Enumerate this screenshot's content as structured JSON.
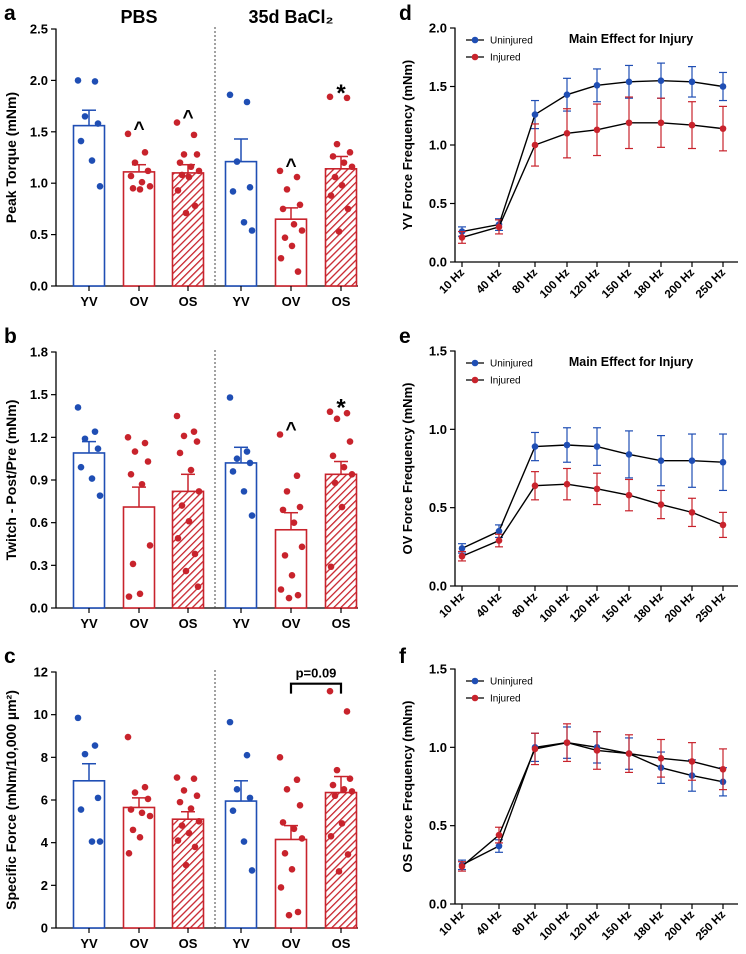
{
  "colors": {
    "blue": "#1f4eb4",
    "red": "#c8232c"
  },
  "chart_data": [
    {
      "panel": "a",
      "type": "bar",
      "group_labels": [
        "PBS",
        "35d BaCl₂"
      ],
      "categories": [
        "YV",
        "OV",
        "OS",
        "YV",
        "OV",
        "OS"
      ],
      "ylabel": "Peak Torque (mNm)",
      "ylim": [
        0,
        2.5
      ],
      "yticks": [
        "0.0",
        "0.5",
        "1.0",
        "1.5",
        "2.0",
        "2.5"
      ],
      "means": [
        1.56,
        1.11,
        1.1,
        1.21,
        0.65,
        1.14
      ],
      "sem": [
        0.15,
        0.07,
        0.08,
        0.22,
        0.11,
        0.12
      ],
      "points": [
        [
          2.0,
          1.99,
          1.65,
          1.58,
          1.41,
          1.22,
          0.97
        ],
        [
          1.48,
          1.3,
          1.2,
          1.12,
          1.07,
          1.01,
          0.97,
          0.95,
          0.94
        ],
        [
          1.59,
          1.47,
          1.28,
          1.28,
          1.2,
          1.16,
          1.12,
          1.08,
          1.06,
          0.93,
          0.78,
          0.71
        ],
        [
          1.86,
          1.79,
          1.21,
          0.96,
          0.92,
          0.62,
          0.54
        ],
        [
          1.12,
          1.06,
          0.94,
          0.79,
          0.75,
          0.6,
          0.54,
          0.47,
          0.39,
          0.27,
          0.14
        ],
        [
          1.84,
          1.83,
          1.38,
          1.3,
          1.26,
          1.2,
          1.16,
          1.06,
          0.98,
          0.88,
          0.75,
          0.53
        ]
      ],
      "markers": [
        "",
        "^",
        "^",
        "",
        "^",
        "*"
      ]
    },
    {
      "panel": "b",
      "type": "bar",
      "categories": [
        "YV",
        "OV",
        "OS",
        "YV",
        "OV",
        "OS"
      ],
      "ylabel": "Twitch - Post/Pre (mNm)",
      "ylim": [
        0,
        1.8
      ],
      "yticks": [
        "0.0",
        "0.3",
        "0.6",
        "0.9",
        "1.2",
        "1.5",
        "1.8"
      ],
      "means": [
        1.09,
        0.71,
        0.82,
        1.02,
        0.55,
        0.94
      ],
      "sem": [
        0.08,
        0.14,
        0.12,
        0.11,
        0.12,
        0.09
      ],
      "points": [
        [
          1.41,
          1.24,
          1.19,
          1.12,
          0.99,
          0.91,
          0.79
        ],
        [
          1.2,
          1.16,
          1.1,
          1.03,
          0.94,
          0.87,
          0.44,
          0.31,
          0.1,
          0.08
        ],
        [
          1.35,
          1.24,
          1.21,
          1.17,
          1.09,
          0.97,
          0.82,
          0.72,
          0.61,
          0.49,
          0.38,
          0.26,
          0.15
        ],
        [
          1.48,
          1.1,
          1.05,
          1.02,
          0.96,
          0.82,
          0.65
        ],
        [
          1.22,
          0.93,
          0.82,
          0.71,
          0.69,
          0.6,
          0.43,
          0.37,
          0.23,
          0.13,
          0.09,
          0.07
        ],
        [
          1.38,
          1.37,
          1.33,
          1.17,
          1.07,
          0.99,
          0.94,
          0.88,
          0.71,
          0.29
        ]
      ],
      "markers": [
        "",
        "",
        "",
        "",
        "^",
        "*"
      ]
    },
    {
      "panel": "c",
      "type": "bar",
      "categories": [
        "YV",
        "OV",
        "OS",
        "YV",
        "OV",
        "OS"
      ],
      "ylabel": "Specific Force (mNm/10,000 µm²)",
      "ylim": [
        0,
        12
      ],
      "yticks": [
        "0",
        "2",
        "4",
        "6",
        "8",
        "10",
        "12"
      ],
      "means": [
        6.9,
        5.65,
        5.1,
        5.95,
        4.15,
        6.35
      ],
      "sem": [
        0.8,
        0.45,
        0.35,
        0.95,
        0.65,
        0.75
      ],
      "points": [
        [
          9.85,
          8.55,
          8.15,
          6.1,
          5.55,
          4.05,
          4.05
        ],
        [
          8.95,
          6.6,
          6.35,
          6.05,
          5.55,
          5.4,
          5.25,
          4.6,
          4.25,
          3.5
        ],
        [
          7.05,
          7.0,
          6.45,
          6.2,
          5.9,
          5.6,
          5.0,
          4.8,
          4.45,
          4.1,
          3.8,
          2.95
        ],
        [
          9.65,
          8.1,
          6.5,
          6.1,
          5.5,
          4.05,
          2.7
        ],
        [
          8.0,
          6.95,
          6.5,
          5.75,
          4.95,
          4.65,
          4.2,
          3.5,
          2.75,
          1.9,
          0.75,
          0.6
        ],
        [
          11.1,
          10.15,
          7.4,
          7.0,
          6.7,
          6.5,
          6.4,
          6.2,
          4.9,
          4.3,
          3.45,
          2.65
        ]
      ],
      "annotation": "p=0.09"
    },
    {
      "panel": "d",
      "type": "line",
      "title": "Main Effect for Injury",
      "xcategories": [
        "10 Hz",
        "40 Hz",
        "80 Hz",
        "100 Hz",
        "120 Hz",
        "150 Hz",
        "180 Hz",
        "200 Hz",
        "250 Hz"
      ],
      "ylabel": "YV Force Frequency (mNm)",
      "ylim": [
        0,
        2.0
      ],
      "yticks": [
        "0.0",
        "0.5",
        "1.0",
        "1.5",
        "2.0"
      ],
      "series": [
        {
          "name": "Uninjured",
          "values": [
            0.26,
            0.32,
            1.26,
            1.43,
            1.51,
            1.54,
            1.55,
            1.54,
            1.5
          ],
          "errors": [
            0.04,
            0.05,
            0.12,
            0.14,
            0.14,
            0.14,
            0.15,
            0.13,
            0.12
          ]
        },
        {
          "name": "Injured",
          "values": [
            0.21,
            0.3,
            1.0,
            1.1,
            1.13,
            1.19,
            1.19,
            1.17,
            1.14
          ],
          "errors": [
            0.05,
            0.06,
            0.18,
            0.21,
            0.22,
            0.22,
            0.21,
            0.2,
            0.19
          ]
        }
      ]
    },
    {
      "panel": "e",
      "type": "line",
      "title": "Main Effect for Injury",
      "xcategories": [
        "10 Hz",
        "40 Hz",
        "80 Hz",
        "100 Hz",
        "120 Hz",
        "150 Hz",
        "180 Hz",
        "200 Hz",
        "250 Hz"
      ],
      "ylabel": "OV Force Frequency (mNm)",
      "ylim": [
        0,
        1.5
      ],
      "yticks": [
        "0.0",
        "0.5",
        "1.0",
        "1.5"
      ],
      "series": [
        {
          "name": "Uninjured",
          "values": [
            0.24,
            0.35,
            0.89,
            0.9,
            0.89,
            0.84,
            0.8,
            0.8,
            0.79
          ],
          "errors": [
            0.03,
            0.04,
            0.09,
            0.11,
            0.12,
            0.15,
            0.16,
            0.17,
            0.18
          ]
        },
        {
          "name": "Injured",
          "values": [
            0.19,
            0.29,
            0.64,
            0.65,
            0.62,
            0.58,
            0.52,
            0.47,
            0.39
          ],
          "errors": [
            0.03,
            0.04,
            0.09,
            0.1,
            0.1,
            0.1,
            0.09,
            0.09,
            0.08
          ]
        }
      ]
    },
    {
      "panel": "f",
      "type": "line",
      "xcategories": [
        "10 Hz",
        "40 Hz",
        "80 Hz",
        "100 Hz",
        "120 Hz",
        "150 Hz",
        "180 Hz",
        "200 Hz",
        "250 Hz"
      ],
      "ylabel": "OS Force Frequency (mNm)",
      "ylim": [
        0,
        1.5
      ],
      "yticks": [
        "0.0",
        "0.5",
        "1.0",
        "1.5"
      ],
      "series": [
        {
          "name": "Uninjured",
          "values": [
            0.25,
            0.37,
            1.0,
            1.03,
            1.0,
            0.96,
            0.87,
            0.82,
            0.78
          ],
          "errors": [
            0.03,
            0.04,
            0.09,
            0.1,
            0.1,
            0.1,
            0.1,
            0.1,
            0.09
          ]
        },
        {
          "name": "Injured",
          "values": [
            0.24,
            0.44,
            0.99,
            1.03,
            0.98,
            0.96,
            0.93,
            0.91,
            0.86
          ],
          "errors": [
            0.03,
            0.05,
            0.1,
            0.12,
            0.12,
            0.12,
            0.12,
            0.12,
            0.13
          ]
        }
      ]
    }
  ]
}
